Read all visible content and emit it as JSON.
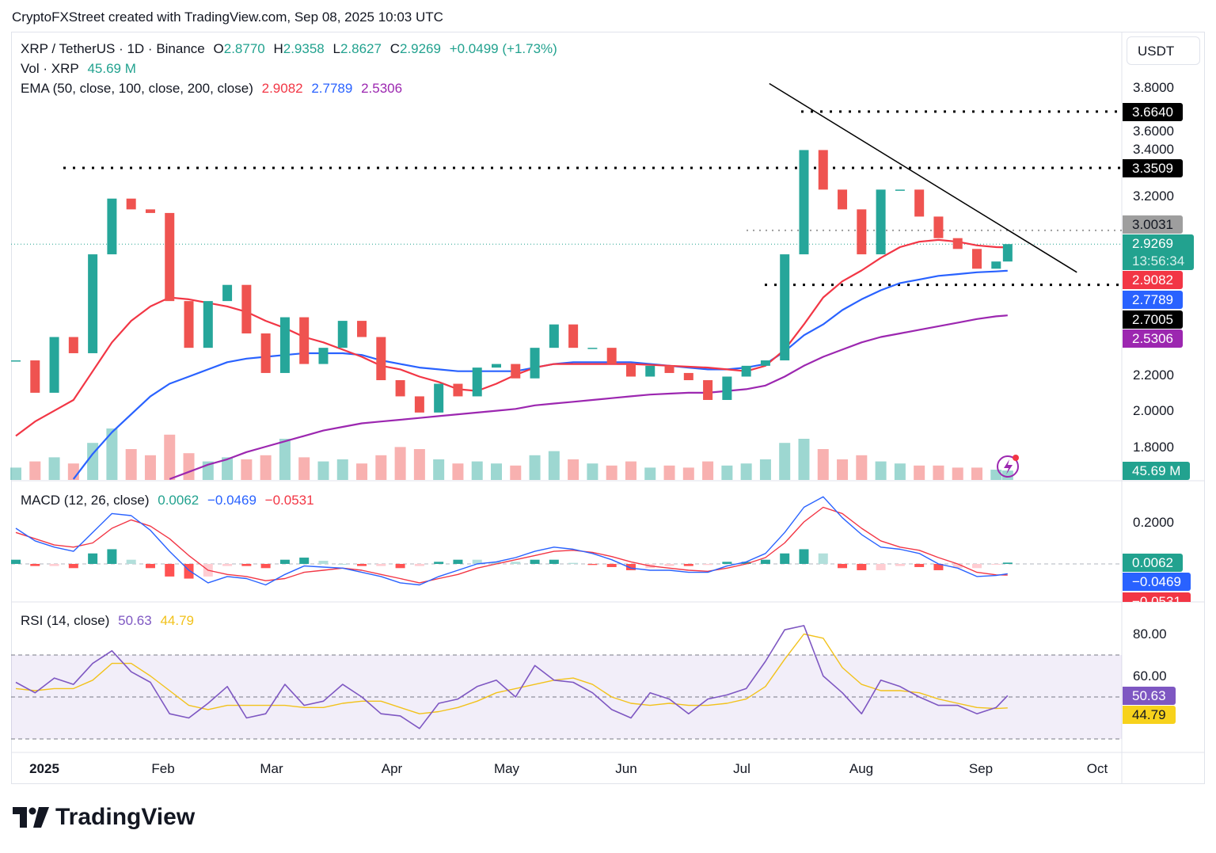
{
  "header": {
    "caption": "CryptoFXStreet created with TradingView.com, Sep 08, 2025 10:03 UTC"
  },
  "legend": {
    "symbol": "XRP / TetherUS · 1D · Binance",
    "o_label": "O",
    "o": "2.8770",
    "h_label": "H",
    "h": "2.9358",
    "l_label": "L",
    "l": "2.8627",
    "c_label": "C",
    "c": "2.9269",
    "change": "+0.0499 (+1.73%)",
    "vol_label": "Vol · XRP",
    "vol": "45.69 M",
    "ema_label": "EMA (50, close, 100, close, 200, close)",
    "ema50": "2.9082",
    "ema100": "2.7789",
    "ema200": "2.5306",
    "macd_label": "MACD (12, 26, close)",
    "macd_hist": "0.0062",
    "macd_line": "−0.0469",
    "macd_signal": "−0.0531",
    "rsi_label": "RSI (14, close)",
    "rsi": "50.63",
    "rsi_ma": "44.79"
  },
  "price_axis": {
    "currency": "USDT",
    "ticks": [
      "3.8000",
      "3.6000",
      "3.4000",
      "3.2000",
      "2.2000",
      "2.0000",
      "1.8000"
    ],
    "tags": {
      "resistance_high": "3.6640",
      "resistance_mid": "3.3509",
      "level_grey": "3.0031",
      "last_price": "2.9269",
      "countdown": "13:56:34",
      "ema50": "2.9082",
      "ema100": "2.7789",
      "support": "2.7005",
      "ema200": "2.5306",
      "volume": "45.69 M"
    }
  },
  "macd_axis": {
    "ticks": [
      "0.2000"
    ],
    "tags": {
      "hist": "0.0062",
      "macd": "−0.0469",
      "signal": "−0.0531"
    }
  },
  "rsi_axis": {
    "ticks": [
      "80.00",
      "60.00"
    ],
    "tags": {
      "rsi": "50.63",
      "ma": "44.79"
    }
  },
  "time_axis": {
    "labels": [
      "2025",
      "Feb",
      "Mar",
      "Apr",
      "May",
      "Jun",
      "Jul",
      "Aug",
      "Sep",
      "Oct"
    ]
  },
  "brand": {
    "name": "TradingView"
  },
  "colors": {
    "up": "#26a69a",
    "down": "#ef5350",
    "ema50": "#f23645",
    "ema100": "#2962ff",
    "ema200": "#9c27b0",
    "macd": "#2962ff",
    "signal": "#f23645",
    "rsi": "#7e57c2",
    "rsi_ma": "#f2c21b"
  },
  "chart_data": {
    "type": "candlestick",
    "title": "XRP / TetherUS · 1D · Binance",
    "ylim": [
      1.75,
      3.85
    ],
    "dates": [
      "2024-12-24",
      "2024-12-29",
      "2025-01-03",
      "2025-01-08",
      "2025-01-13",
      "2025-01-18",
      "2025-01-23",
      "2025-01-28",
      "2025-02-02",
      "2025-02-07",
      "2025-02-12",
      "2025-02-17",
      "2025-02-22",
      "2025-02-27",
      "2025-03-04",
      "2025-03-09",
      "2025-03-14",
      "2025-03-19",
      "2025-03-24",
      "2025-03-29",
      "2025-04-03",
      "2025-04-08",
      "2025-04-13",
      "2025-04-18",
      "2025-04-23",
      "2025-04-28",
      "2025-05-03",
      "2025-05-08",
      "2025-05-13",
      "2025-05-18",
      "2025-05-23",
      "2025-05-28",
      "2025-06-02",
      "2025-06-07",
      "2025-06-12",
      "2025-06-17",
      "2025-06-22",
      "2025-06-27",
      "2025-07-02",
      "2025-07-07",
      "2025-07-12",
      "2025-07-17",
      "2025-07-22",
      "2025-07-27",
      "2025-08-01",
      "2025-08-06",
      "2025-08-11",
      "2025-08-16",
      "2025-08-21",
      "2025-08-26",
      "2025-08-31",
      "2025-09-05",
      "2025-09-08"
    ],
    "close": [
      2.28,
      2.1,
      2.41,
      2.32,
      2.87,
      3.18,
      3.12,
      3.1,
      2.61,
      2.35,
      2.61,
      2.7,
      2.43,
      2.21,
      2.52,
      2.26,
      2.35,
      2.5,
      2.41,
      2.17,
      2.08,
      1.99,
      2.15,
      2.08,
      2.24,
      2.26,
      2.18,
      2.35,
      2.48,
      2.35,
      2.35,
      2.26,
      2.19,
      2.25,
      2.21,
      2.17,
      2.06,
      2.19,
      2.25,
      2.28,
      2.87,
      3.45,
      3.23,
      3.12,
      2.87,
      3.23,
      3.23,
      3.08,
      2.96,
      2.9,
      2.79,
      2.83,
      2.9269
    ],
    "volume_m": [
      60,
      90,
      110,
      80,
      180,
      250,
      150,
      120,
      220,
      130,
      90,
      110,
      100,
      120,
      200,
      110,
      90,
      100,
      80,
      120,
      160,
      150,
      100,
      80,
      90,
      80,
      70,
      120,
      140,
      100,
      80,
      70,
      90,
      60,
      70,
      60,
      90,
      70,
      80,
      100,
      180,
      200,
      150,
      100,
      120,
      90,
      80,
      70,
      70,
      60,
      60,
      50,
      45.69
    ],
    "ema50": [
      1.86,
      1.94,
      2.0,
      2.06,
      2.22,
      2.38,
      2.5,
      2.58,
      2.63,
      2.62,
      2.6,
      2.58,
      2.55,
      2.5,
      2.46,
      2.41,
      2.38,
      2.34,
      2.3,
      2.25,
      2.23,
      2.19,
      2.16,
      2.12,
      2.11,
      2.15,
      2.2,
      2.24,
      2.26,
      2.26,
      2.26,
      2.26,
      2.26,
      2.255,
      2.25,
      2.245,
      2.24,
      2.23,
      2.22,
      2.25,
      2.34,
      2.48,
      2.63,
      2.72,
      2.78,
      2.85,
      2.91,
      2.94,
      2.95,
      2.94,
      2.92,
      2.91,
      2.9082
    ],
    "ema100": [
      null,
      null,
      null,
      1.62,
      1.76,
      1.88,
      1.98,
      2.08,
      2.15,
      2.19,
      2.23,
      2.27,
      2.29,
      2.3,
      2.31,
      2.32,
      2.32,
      2.32,
      2.31,
      2.28,
      2.26,
      2.24,
      2.23,
      2.22,
      2.22,
      2.22,
      2.22,
      2.24,
      2.26,
      2.27,
      2.27,
      2.27,
      2.27,
      2.26,
      2.25,
      2.24,
      2.23,
      2.23,
      2.24,
      2.26,
      2.33,
      2.42,
      2.48,
      2.56,
      2.62,
      2.67,
      2.71,
      2.73,
      2.75,
      2.76,
      2.77,
      2.775,
      2.7789
    ],
    "ema200": [
      null,
      null,
      null,
      null,
      null,
      null,
      null,
      null,
      1.62,
      1.66,
      1.7,
      1.73,
      1.77,
      1.8,
      1.83,
      1.86,
      1.89,
      1.91,
      1.93,
      1.94,
      1.95,
      1.96,
      1.97,
      1.98,
      1.99,
      2.0,
      2.01,
      2.03,
      2.04,
      2.05,
      2.06,
      2.07,
      2.08,
      2.09,
      2.095,
      2.1,
      2.1,
      2.11,
      2.12,
      2.14,
      2.19,
      2.25,
      2.3,
      2.34,
      2.38,
      2.41,
      2.43,
      2.45,
      2.47,
      2.49,
      2.51,
      2.525,
      2.5306
    ],
    "levels": {
      "resistance_high": 3.664,
      "resistance_mid": 3.3509,
      "grey": 3.0031,
      "support": 2.7005
    },
    "trendline": [
      [
        "2025-07-08",
        3.82
      ],
      [
        "2025-09-26",
        2.77
      ]
    ],
    "macd": {
      "ylim": [
        -0.12,
        0.36
      ],
      "macd": [
        0.17,
        0.11,
        0.08,
        0.06,
        0.15,
        0.24,
        0.23,
        0.16,
        0.06,
        -0.03,
        -0.09,
        -0.06,
        -0.07,
        -0.1,
        -0.05,
        -0.01,
        -0.015,
        -0.02,
        -0.04,
        -0.06,
        -0.09,
        -0.1,
        -0.06,
        -0.03,
        0.0,
        0.01,
        0.03,
        0.06,
        0.08,
        0.07,
        0.05,
        0.02,
        -0.02,
        -0.03,
        -0.03,
        -0.04,
        -0.04,
        -0.01,
        0.01,
        0.05,
        0.15,
        0.27,
        0.32,
        0.22,
        0.14,
        0.08,
        0.07,
        0.05,
        0.0,
        -0.02,
        -0.06,
        -0.055,
        -0.0469
      ],
      "signal": [
        0.15,
        0.12,
        0.09,
        0.08,
        0.1,
        0.17,
        0.21,
        0.18,
        0.12,
        0.04,
        -0.03,
        -0.05,
        -0.06,
        -0.08,
        -0.07,
        -0.04,
        -0.03,
        -0.02,
        -0.03,
        -0.05,
        -0.07,
        -0.09,
        -0.07,
        -0.05,
        -0.02,
        0.0,
        0.02,
        0.04,
        0.06,
        0.065,
        0.055,
        0.035,
        0.01,
        -0.01,
        -0.02,
        -0.03,
        -0.035,
        -0.02,
        0.0,
        0.03,
        0.1,
        0.2,
        0.27,
        0.24,
        0.17,
        0.11,
        0.08,
        0.065,
        0.03,
        0.0,
        -0.04,
        -0.052,
        -0.0531
      ]
    },
    "rsi": {
      "ylim": [
        20,
        95
      ],
      "bands": [
        30,
        70
      ],
      "rsi": [
        57,
        52,
        59,
        56,
        66,
        72,
        62,
        57,
        42,
        40,
        47,
        55,
        40,
        42,
        56,
        46,
        48,
        56,
        50,
        42,
        41,
        35,
        47,
        49,
        55,
        58,
        50,
        65,
        58,
        57,
        52,
        44,
        40,
        52,
        49,
        42,
        49,
        51,
        54,
        67,
        82,
        84,
        60,
        52,
        42,
        58,
        55,
        50,
        46,
        46,
        42,
        45,
        50.63
      ],
      "ma": [
        54,
        53,
        54,
        54,
        58,
        66,
        66,
        60,
        53,
        46,
        44,
        46,
        46,
        46,
        46,
        45,
        45,
        47,
        48,
        48,
        45,
        42,
        43,
        45,
        48,
        52,
        54,
        56,
        58,
        59,
        56,
        50,
        47,
        46,
        47,
        46,
        46,
        47,
        49,
        55,
        68,
        80,
        78,
        64,
        56,
        53,
        53,
        52,
        49,
        47,
        45,
        44.5,
        44.79
      ]
    }
  }
}
